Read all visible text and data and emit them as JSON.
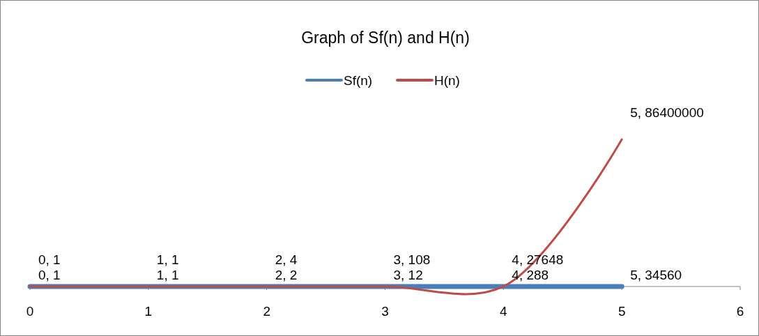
{
  "chart_data": {
    "type": "line",
    "title": "Graph of Sf(n) and H(n)",
    "x": [
      0,
      1,
      2,
      3,
      4,
      5
    ],
    "series": [
      {
        "name": "Sf(n)",
        "color": "#4a7ebb",
        "values": [
          1,
          1,
          2,
          12,
          288,
          34560
        ],
        "value_labels": [
          "0, 1",
          "1, 1",
          "2, 2",
          "3, 12",
          "4, 288",
          "5, 34560"
        ]
      },
      {
        "name": "H(n)",
        "color": "#be4b48",
        "values": [
          1,
          1,
          4,
          108,
          27648,
          86400000
        ],
        "value_labels": [
          "0, 1",
          "1, 1",
          "2, 4",
          "3, 108",
          "4, 27648",
          "5, 86400000"
        ]
      }
    ],
    "xlim": [
      0,
      6
    ],
    "xticks": [
      0,
      1,
      2,
      3,
      4,
      5,
      6
    ],
    "legend": "top",
    "grid": false,
    "marker": "none",
    "line_style": "solid"
  }
}
